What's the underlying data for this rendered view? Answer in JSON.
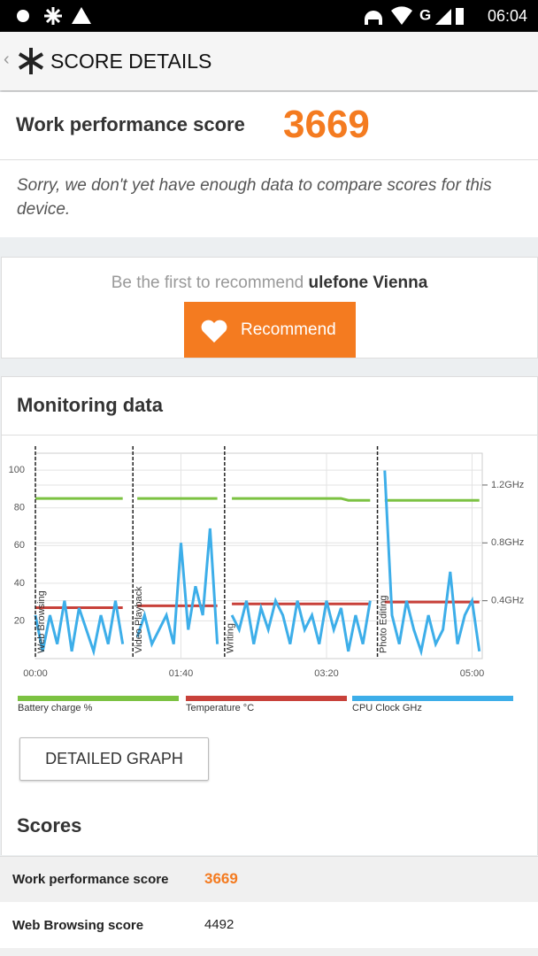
{
  "status_bar": {
    "time": "06:04"
  },
  "header": {
    "title": "SCORE DETAILS"
  },
  "score_card": {
    "label": "Work performance score",
    "score": "3669",
    "note": "Sorry, we don't yet have enough data to compare scores for this device."
  },
  "recommend": {
    "prompt": "Be the first to recommend",
    "device": "ulefone Vienna",
    "button": "Recommend"
  },
  "monitoring": {
    "title": "Monitoring data",
    "button": "DETAILED GRAPH"
  },
  "chart_data": {
    "type": "line",
    "x": [
      0,
      5,
      10,
      15,
      20,
      25,
      30,
      35,
      40,
      45,
      50,
      55,
      60,
      65,
      70,
      75,
      80,
      85,
      90,
      95,
      100,
      105,
      110,
      115,
      120,
      125,
      130,
      135,
      140,
      145,
      150,
      155,
      160,
      165,
      170,
      175,
      180,
      185,
      190,
      195,
      200,
      205,
      210,
      215,
      220,
      225,
      230,
      235,
      240,
      245,
      250,
      255,
      260,
      265,
      270,
      275,
      280,
      285,
      290,
      295,
      300,
      305
    ],
    "series": [
      {
        "name": "Battery charge %",
        "color": "#7cc242",
        "values": [
          85,
          85,
          85,
          85,
          85,
          85,
          85,
          85,
          85,
          85,
          85,
          85,
          85,
          null,
          85,
          85,
          85,
          85,
          85,
          85,
          85,
          85,
          85,
          85,
          85,
          85,
          null,
          85,
          85,
          85,
          85,
          85,
          85,
          85,
          85,
          85,
          85,
          85,
          85,
          85,
          85,
          85,
          85,
          84,
          84,
          84,
          84,
          null,
          84,
          84,
          84,
          84,
          84,
          84,
          84,
          84,
          84,
          84,
          84,
          84,
          84,
          84
        ]
      },
      {
        "name": "Temperature °C",
        "color": "#c8413a",
        "values": [
          27,
          27,
          27,
          27,
          27,
          27,
          27,
          27,
          27,
          27,
          27,
          27,
          27,
          null,
          28,
          28,
          28,
          28,
          28,
          28,
          28,
          28,
          28,
          28,
          28,
          28,
          null,
          29,
          29,
          29,
          29,
          29,
          29,
          29,
          29,
          29,
          29,
          29,
          29,
          29,
          29,
          29,
          29,
          29,
          29,
          29,
          29,
          null,
          30,
          30,
          30,
          30,
          30,
          30,
          30,
          30,
          30,
          30,
          30,
          30,
          30,
          30
        ]
      },
      {
        "name": "CPU Clock GHz",
        "color": "#3daee9",
        "axis": "y2",
        "values": [
          0.3,
          0.05,
          0.3,
          0.1,
          0.4,
          0.05,
          0.35,
          0.2,
          0.05,
          0.3,
          0.1,
          0.4,
          0.1,
          null,
          0.15,
          0.3,
          0.1,
          0.2,
          0.3,
          0.1,
          0.8,
          0.2,
          0.5,
          0.3,
          0.9,
          0.1,
          null,
          0.3,
          0.2,
          0.4,
          0.1,
          0.35,
          0.2,
          0.4,
          0.3,
          0.1,
          0.4,
          0.2,
          0.3,
          0.1,
          0.4,
          0.2,
          0.35,
          0.05,
          0.3,
          0.1,
          0.4,
          null,
          1.3,
          0.3,
          0.1,
          0.4,
          0.2,
          0.05,
          0.3,
          0.1,
          0.2,
          0.6,
          0.1,
          0.3,
          0.4,
          0.05
        ]
      }
    ],
    "xlim": [
      0,
      307
    ],
    "xticks": [
      {
        "value": 0,
        "label": "00:00"
      },
      {
        "value": 100,
        "label": "01:40"
      },
      {
        "value": 200,
        "label": "03:20"
      },
      {
        "value": 300,
        "label": "05:00"
      }
    ],
    "ylim": [
      0,
      109
    ],
    "yticks": [
      20,
      40,
      60,
      80,
      100
    ],
    "y2lim": [
      0,
      1.42
    ],
    "y2ticks": [
      {
        "value": 0.4,
        "label": "0.4GHz"
      },
      {
        "value": 0.8,
        "label": "0.8GHz"
      },
      {
        "value": 1.2,
        "label": "1.2GHz"
      }
    ],
    "markers": [
      {
        "x": 0,
        "label": "Web Browsing"
      },
      {
        "x": 67,
        "label": "Video Playback"
      },
      {
        "x": 130,
        "label": "Writing"
      },
      {
        "x": 235,
        "label": "Photo Editing"
      }
    ],
    "grid": true
  },
  "scores": {
    "title": "Scores",
    "rows": [
      [
        "Work performance score",
        "3669"
      ],
      [
        "Web Browsing score",
        "4492"
      ]
    ]
  }
}
